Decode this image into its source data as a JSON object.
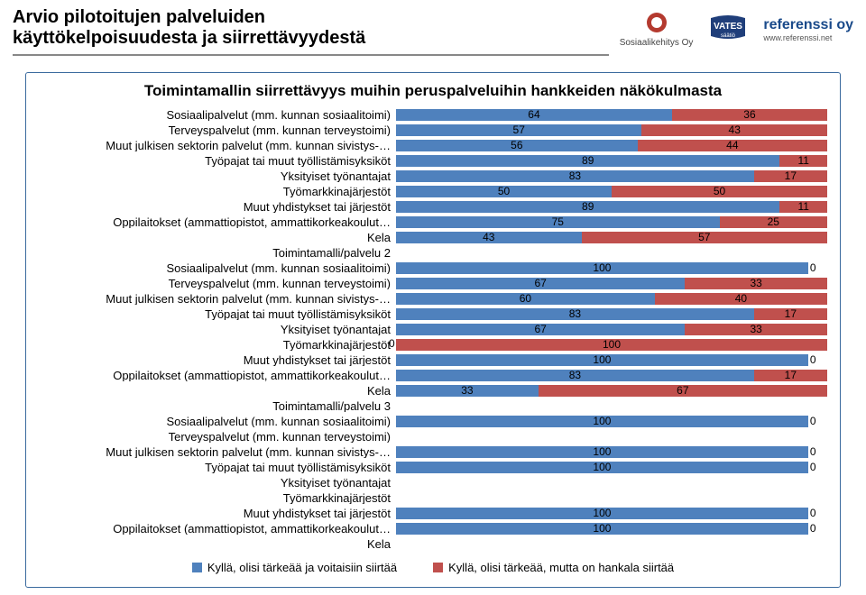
{
  "header": {
    "title_line1": "Arvio pilotoitujen palveluiden",
    "title_line2": "käyttökelpoisuudesta ja siirrettävyydestä",
    "logo1": "Sosiaalikehitys Oy",
    "logo2": "VATES säätiö",
    "logo3": "referenssi oy",
    "logo3_sub": "www.referenssi.net"
  },
  "chart": {
    "type": "stacked-bar",
    "orientation": "horizontal",
    "title": "Toimintamallin siirrettävyys muihin peruspalveluihin hankkeiden näkökulmasta",
    "colors": {
      "a": "#4f81bd",
      "b": "#c0504d"
    },
    "xlim": [
      0,
      100
    ],
    "background_color": "#ffffff",
    "frame_color": "#3a6a9e",
    "label_fontsize": 13,
    "value_fontsize": 12,
    "categories": [
      {
        "label": "Sosiaalipalvelut (mm. kunnan sosiaalitoimi)",
        "a": 64,
        "b": 36
      },
      {
        "label": "Terveyspalvelut (mm. kunnan terveystoimi)",
        "a": 57,
        "b": 43
      },
      {
        "label": "Muut julkisen sektorin palvelut (mm. kunnan sivistys-…",
        "a": 56,
        "b": 44
      },
      {
        "label": "Työpajat tai muut työllistämisyksiköt",
        "a": 89,
        "b": 11
      },
      {
        "label": "Yksityiset työnantajat",
        "a": 83,
        "b": 17
      },
      {
        "label": "Työmarkkinajärjestöt",
        "a": 50,
        "b": 50
      },
      {
        "label": "Muut yhdistykset tai järjestöt",
        "a": 89,
        "b": 11
      },
      {
        "label": "Oppilaitokset (ammattiopistot, ammattikorkeakoulut…",
        "a": 75,
        "b": 25
      },
      {
        "label": "Kela",
        "a": 43,
        "b": 57
      },
      {
        "label": "Toimintamalli/palvelu 2",
        "section": true
      },
      {
        "label": "Sosiaalipalvelut (mm. kunnan sosiaalitoimi)",
        "a": 100,
        "b": 0
      },
      {
        "label": "Terveyspalvelut (mm. kunnan terveystoimi)",
        "a": 67,
        "b": 33
      },
      {
        "label": "Muut julkisen sektorin palvelut (mm. kunnan sivistys-…",
        "a": 60,
        "b": 40
      },
      {
        "label": "Työpajat tai muut työllistämisyksiköt",
        "a": 83,
        "b": 17
      },
      {
        "label": "Yksityiset työnantajat",
        "a": 67,
        "b": 33
      },
      {
        "label": "Työmarkkinajärjestöt",
        "a": 0,
        "b": 100,
        "zero_a": true
      },
      {
        "label": "Muut yhdistykset tai järjestöt",
        "a": 100,
        "b": 0
      },
      {
        "label": "Oppilaitokset (ammattiopistot, ammattikorkeakoulut…",
        "a": 83,
        "b": 17
      },
      {
        "label": "Kela",
        "a": 33,
        "b": 67
      },
      {
        "label": "Toimintamalli/palvelu 3",
        "section": true
      },
      {
        "label": "Sosiaalipalvelut (mm. kunnan sosiaalitoimi)",
        "a": 100,
        "b": 0
      },
      {
        "label": "Terveyspalvelut (mm. kunnan terveystoimi)",
        "section": true
      },
      {
        "label": "Muut julkisen sektorin palvelut (mm. kunnan sivistys-…",
        "a": 100,
        "b": 0
      },
      {
        "label": "Työpajat tai muut työllistämisyksiköt",
        "a": 100,
        "b": 0
      },
      {
        "label": "Yksityiset työnantajat",
        "section": true
      },
      {
        "label": "Työmarkkinajärjestöt",
        "section": true
      },
      {
        "label": "Muut yhdistykset tai järjestöt",
        "a": 100,
        "b": 0
      },
      {
        "label": "Oppilaitokset (ammattiopistot, ammattikorkeakoulut…",
        "a": 100,
        "b": 0
      },
      {
        "label": "Kela",
        "section": true
      }
    ],
    "legend": {
      "a": "Kyllä, olisi tärkeää ja voitaisiin siirtää",
      "b": "Kyllä, olisi tärkeää, mutta on hankala siirtää"
    }
  }
}
